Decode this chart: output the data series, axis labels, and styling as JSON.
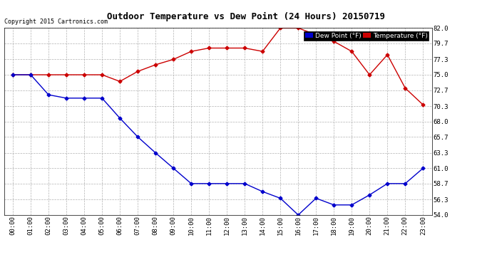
{
  "title": "Outdoor Temperature vs Dew Point (24 Hours) 20150719",
  "copyright": "Copyright 2015 Cartronics.com",
  "background_color": "#ffffff",
  "plot_background": "#ffffff",
  "grid_color": "#aaaaaa",
  "x_labels": [
    "00:00",
    "01:00",
    "02:00",
    "03:00",
    "04:00",
    "05:00",
    "06:00",
    "07:00",
    "08:00",
    "09:00",
    "10:00",
    "11:00",
    "12:00",
    "13:00",
    "14:00",
    "15:00",
    "16:00",
    "17:00",
    "18:00",
    "19:00",
    "20:00",
    "21:00",
    "22:00",
    "23:00"
  ],
  "y_ticks": [
    54.0,
    56.3,
    58.7,
    61.0,
    63.3,
    65.7,
    68.0,
    70.3,
    72.7,
    75.0,
    77.3,
    79.7,
    82.0
  ],
  "ylim": [
    54.0,
    82.0
  ],
  "temp_color": "#cc0000",
  "dew_color": "#0000cc",
  "marker": "D",
  "marker_size": 2.5,
  "line_width": 1.0,
  "temperature": [
    75.0,
    75.0,
    75.0,
    75.0,
    75.0,
    75.0,
    74.0,
    75.5,
    76.5,
    77.3,
    78.5,
    79.0,
    79.0,
    79.0,
    78.5,
    82.0,
    82.0,
    81.0,
    80.0,
    78.5,
    75.0,
    78.0,
    73.0,
    70.5
  ],
  "dewpoint": [
    75.0,
    75.0,
    72.0,
    71.5,
    71.5,
    71.5,
    68.5,
    65.7,
    63.3,
    61.0,
    58.7,
    58.7,
    58.7,
    58.7,
    57.5,
    56.5,
    54.0,
    56.5,
    55.5,
    55.5,
    57.0,
    58.7,
    58.7,
    61.0
  ],
  "legend_dew_label": "Dew Point (°F)",
  "legend_temp_label": "Temperature (°F)"
}
